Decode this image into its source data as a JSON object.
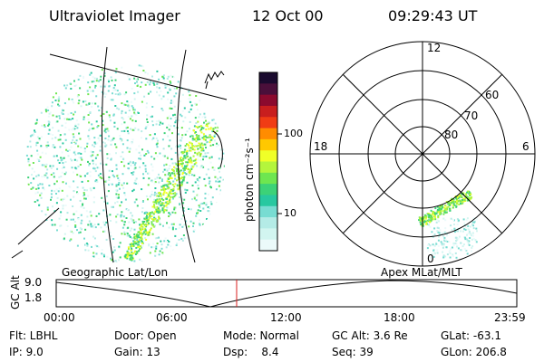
{
  "header": {
    "instrument": "Ultraviolet Imager",
    "date": "12 Oct 00",
    "time": "09:29:43 UT"
  },
  "colorbar": {
    "unit_label": "photon cm⁻²s⁻¹",
    "tick_labels": [
      "100",
      "10"
    ],
    "colors": [
      "#1a0a2e",
      "#4a0f3a",
      "#8b0a2e",
      "#c81e1e",
      "#f03c14",
      "#ff8c00",
      "#ffc800",
      "#f0ff28",
      "#b4f53c",
      "#6ee650",
      "#3cd278",
      "#28c8a0",
      "#78dcd2",
      "#b4ebe6",
      "#d2f5f0",
      "#ebfafa"
    ]
  },
  "polar_plot": {
    "mlt_labels": {
      "top": "12",
      "left": "18",
      "right": "6",
      "bottom": "0"
    },
    "lat_labels": [
      "60",
      "70",
      "80"
    ]
  },
  "timeline": {
    "left_label": "Geographic Lat/Lon",
    "right_label": "Apex MLat/MLT",
    "axis_title": "GC Alt",
    "y_ticks": [
      "9.0",
      "1.8"
    ],
    "x_ticks": [
      "00:00",
      "06:00",
      "12:00",
      "18:00",
      "23:59"
    ],
    "marker_color": "#d81e1e"
  },
  "info": {
    "filter": "Flt: LBHL",
    "ip": "IP: 9.0",
    "door": "Door: Open",
    "gain": "Gain: 13",
    "mode": "Mode: Normal",
    "dsp": "Dsp:    8.4",
    "gc_alt": "GC Alt: 3.6 Re",
    "seq": "Seq: 39",
    "glat": "GLat: -63.1",
    "glon": "GLon: 206.8"
  }
}
